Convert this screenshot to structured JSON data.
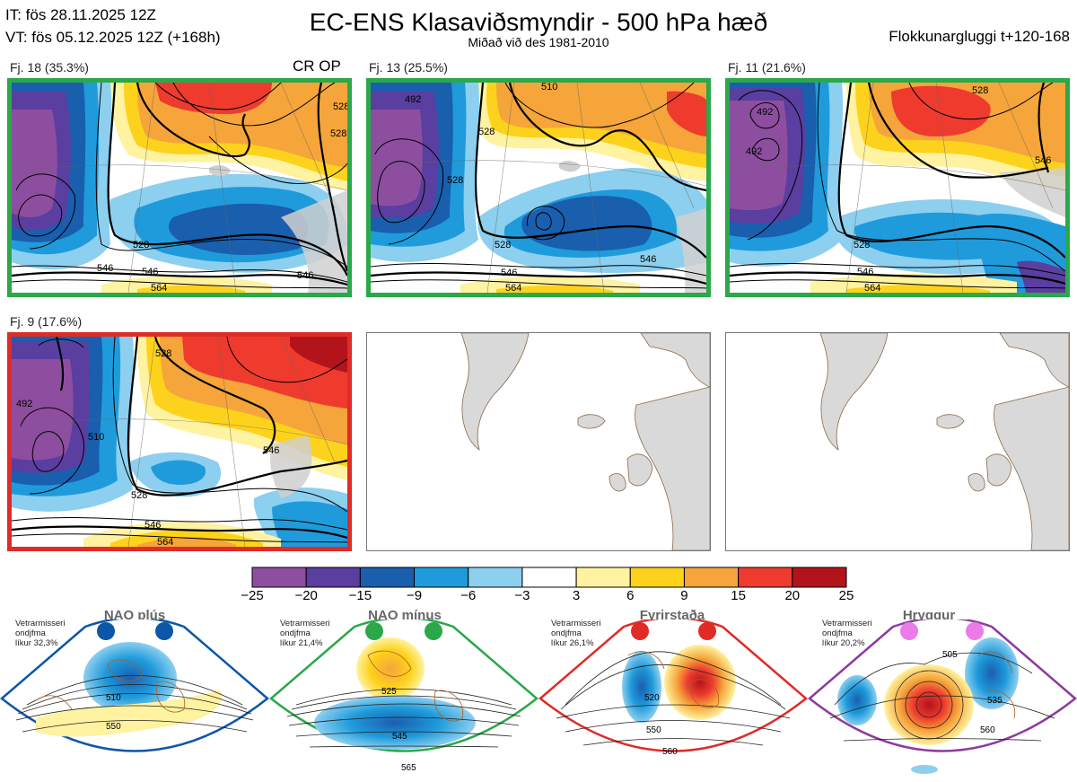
{
  "header": {
    "it_line": "IT: fös 28.11.2025 12Z",
    "vt_line": "VT: fös 05.12.2025 12Z  (+168h)",
    "title": "EC-ENS Klasaviðsmyndir - 500 hPa hæð",
    "subtitle": "Miðað við des 1981-2010",
    "window": "Flokkunargluggi t+120-168"
  },
  "clusters": [
    {
      "label": "Fj. 18 (35.3%)",
      "border": "#2ba84a",
      "extra": "CR OP",
      "contours": [
        "528",
        "546",
        "528",
        "546",
        "564",
        "528",
        "546"
      ]
    },
    {
      "label": "Fj. 13 (25.5%)",
      "border": "#2ba84a",
      "extra": "",
      "contours": [
        "492",
        "528",
        "528",
        "528",
        "546",
        "564",
        "510",
        "546"
      ]
    },
    {
      "label": "Fj. 11 (21.6%)",
      "border": "#2ba84a",
      "extra": "",
      "contours": [
        "492",
        "492",
        "528",
        "546",
        "564",
        "546",
        "528"
      ]
    },
    {
      "label": "Fj. 9 (17.6%)",
      "border": "#e02b27",
      "extra": "",
      "contours": [
        "492",
        "510",
        "528",
        "546",
        "564",
        "528",
        "546"
      ]
    }
  ],
  "chart_data": {
    "type": "heatmap",
    "colorbar": {
      "ticks": [
        "−25",
        "−20",
        "−15",
        "−9",
        "−6",
        "−3",
        "3",
        "6",
        "9",
        "15",
        "20",
        "25"
      ],
      "colors": [
        "#8e4ea0",
        "#5a3ea0",
        "#1a5eae",
        "#1f9bdb",
        "#8ccfef",
        "#ffffff",
        "#fff2a0",
        "#fdd21c",
        "#f5a53a",
        "#ee3b2e",
        "#b3141c"
      ]
    }
  },
  "regimes": [
    {
      "title": "NAO plús",
      "note": [
        "Vetrarmisseri",
        "ondjfma",
        "líkur 32,3%"
      ],
      "dot_color": "#0d56a8",
      "frame": "#0d56a8",
      "contours": [
        "510",
        "550"
      ]
    },
    {
      "title": "NAO mínus",
      "note": [
        "Vetrarmisseri",
        "ondjfma",
        "líkur 21,4%"
      ],
      "dot_color": "#2aa84a",
      "frame": "#2aa84a",
      "contours": [
        "525",
        "545",
        "565"
      ]
    },
    {
      "title": "Fyrirstaða",
      "note": [
        "Vetrarmisseri",
        "ondjfma",
        "líkur 26,1%"
      ],
      "dot_color": "#e02b27",
      "frame": "#e02b27",
      "contours": [
        "520",
        "550",
        "560"
      ]
    },
    {
      "title": "Hryggur",
      "note": [
        "Vetrarmisseri",
        "ondjfma",
        "líkur 20,2%"
      ],
      "dot_color": "#ea7be8",
      "frame": "#8e3a9e",
      "contours": [
        "505",
        "535",
        "560"
      ]
    }
  ]
}
